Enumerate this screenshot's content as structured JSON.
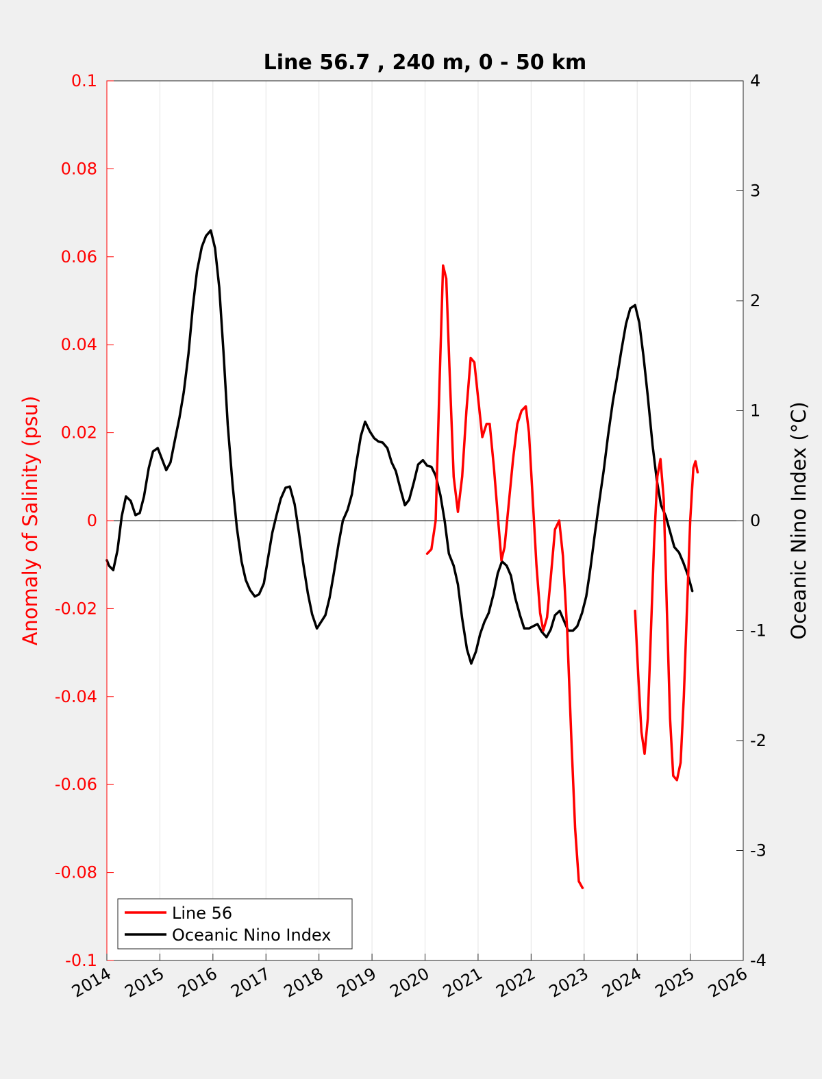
{
  "chart_data": {
    "type": "line",
    "title": "Line 56.7 , 240 m, 0 - 50 km",
    "xlabel": "",
    "xlim": [
      2014,
      2026
    ],
    "xticks": [
      "2014",
      "2015",
      "2016",
      "2017",
      "2018",
      "2019",
      "2020",
      "2021",
      "2022",
      "2023",
      "2024",
      "2025",
      "2026"
    ],
    "y_left": {
      "label": "Anomaly of Salinity (psu)",
      "lim": [
        -0.1,
        0.1
      ],
      "ticks": [
        "-0.1",
        "-0.08",
        "-0.06",
        "-0.04",
        "-0.02",
        "0",
        "0.02",
        "0.04",
        "0.06",
        "0.08",
        "0.1"
      ],
      "color": "#ff0000"
    },
    "y_right": {
      "label": "Oceanic Nino Index (°C)",
      "lim": [
        -4,
        4
      ],
      "ticks": [
        "-4",
        "-3",
        "-2",
        "-1",
        "0",
        "1",
        "2",
        "3",
        "4"
      ],
      "color": "#000000"
    },
    "grid": "vertical",
    "zero_line": true,
    "legend": {
      "placement": "bottom-left"
    },
    "series": [
      {
        "name": "Line 56",
        "axis": "left",
        "color": "#ff0000",
        "segments": [
          [
            [
              2020.04,
              -0.0075
            ],
            [
              2020.12,
              -0.0065
            ],
            [
              2020.2,
              0.0
            ],
            [
              2020.27,
              0.03
            ],
            [
              2020.34,
              0.058
            ],
            [
              2020.4,
              0.055
            ],
            [
              2020.46,
              0.035
            ],
            [
              2020.54,
              0.01
            ],
            [
              2020.62,
              0.002
            ],
            [
              2020.7,
              0.01
            ],
            [
              2020.78,
              0.025
            ],
            [
              2020.86,
              0.037
            ],
            [
              2020.93,
              0.036
            ],
            [
              2021.0,
              0.028
            ],
            [
              2021.08,
              0.019
            ],
            [
              2021.16,
              0.022
            ],
            [
              2021.22,
              0.022
            ],
            [
              2021.3,
              0.012
            ],
            [
              2021.38,
              0.0
            ],
            [
              2021.44,
              -0.009
            ],
            [
              2021.5,
              -0.006
            ],
            [
              2021.58,
              0.004
            ],
            [
              2021.66,
              0.014
            ],
            [
              2021.74,
              0.022
            ],
            [
              2021.82,
              0.025
            ],
            [
              2021.9,
              0.026
            ],
            [
              2021.96,
              0.02
            ],
            [
              2022.03,
              0.005
            ],
            [
              2022.1,
              -0.01
            ],
            [
              2022.17,
              -0.021
            ],
            [
              2022.23,
              -0.025
            ],
            [
              2022.3,
              -0.022
            ],
            [
              2022.37,
              -0.013
            ],
            [
              2022.45,
              -0.002
            ],
            [
              2022.53,
              0.0
            ],
            [
              2022.6,
              -0.008
            ],
            [
              2022.68,
              -0.025
            ],
            [
              2022.76,
              -0.05
            ],
            [
              2022.83,
              -0.07
            ],
            [
              2022.9,
              -0.082
            ],
            [
              2022.97,
              -0.0835
            ]
          ],
          [
            [
              2023.96,
              -0.0205
            ],
            [
              2024.02,
              -0.035
            ],
            [
              2024.08,
              -0.048
            ],
            [
              2024.14,
              -0.053
            ],
            [
              2024.2,
              -0.045
            ],
            [
              2024.26,
              -0.025
            ],
            [
              2024.32,
              -0.005
            ],
            [
              2024.38,
              0.01
            ],
            [
              2024.44,
              0.014
            ],
            [
              2024.5,
              0.005
            ],
            [
              2024.56,
              -0.02
            ],
            [
              2024.62,
              -0.045
            ],
            [
              2024.68,
              -0.058
            ],
            [
              2024.75,
              -0.059
            ],
            [
              2024.82,
              -0.055
            ],
            [
              2024.88,
              -0.04
            ],
            [
              2024.94,
              -0.02
            ],
            [
              2025.0,
              0.0
            ],
            [
              2025.06,
              0.012
            ],
            [
              2025.1,
              0.0135
            ],
            [
              2025.14,
              0.011
            ]
          ]
        ]
      },
      {
        "name": "Oceanic Nino Index",
        "axis": "right",
        "color": "#000000",
        "segments": [
          [
            [
              2014.0,
              -0.36
            ],
            [
              2014.04,
              -0.41
            ],
            [
              2014.12,
              -0.45
            ],
            [
              2014.2,
              -0.27
            ],
            [
              2014.28,
              0.04
            ],
            [
              2014.36,
              0.22
            ],
            [
              2014.45,
              0.18
            ],
            [
              2014.54,
              0.05
            ],
            [
              2014.62,
              0.07
            ],
            [
              2014.7,
              0.22
            ],
            [
              2014.79,
              0.48
            ],
            [
              2014.87,
              0.63
            ],
            [
              2014.96,
              0.66
            ],
            [
              2015.04,
              0.56
            ],
            [
              2015.12,
              0.46
            ],
            [
              2015.2,
              0.53
            ],
            [
              2015.29,
              0.75
            ],
            [
              2015.37,
              0.94
            ],
            [
              2015.45,
              1.17
            ],
            [
              2015.54,
              1.52
            ],
            [
              2015.62,
              1.94
            ],
            [
              2015.7,
              2.27
            ],
            [
              2015.79,
              2.49
            ],
            [
              2015.87,
              2.59
            ],
            [
              2015.96,
              2.64
            ],
            [
              2016.04,
              2.48
            ],
            [
              2016.12,
              2.12
            ],
            [
              2016.2,
              1.53
            ],
            [
              2016.28,
              0.87
            ],
            [
              2016.37,
              0.33
            ],
            [
              2016.45,
              -0.06
            ],
            [
              2016.54,
              -0.37
            ],
            [
              2016.62,
              -0.54
            ],
            [
              2016.7,
              -0.63
            ],
            [
              2016.79,
              -0.69
            ],
            [
              2016.87,
              -0.67
            ],
            [
              2016.96,
              -0.57
            ],
            [
              2017.04,
              -0.34
            ],
            [
              2017.12,
              -0.11
            ],
            [
              2017.2,
              0.05
            ],
            [
              2017.28,
              0.2
            ],
            [
              2017.37,
              0.3
            ],
            [
              2017.45,
              0.31
            ],
            [
              2017.54,
              0.15
            ],
            [
              2017.62,
              -0.1
            ],
            [
              2017.7,
              -0.38
            ],
            [
              2017.79,
              -0.66
            ],
            [
              2017.87,
              -0.85
            ],
            [
              2017.96,
              -0.98
            ],
            [
              2018.04,
              -0.92
            ],
            [
              2018.12,
              -0.86
            ],
            [
              2018.2,
              -0.7
            ],
            [
              2018.28,
              -0.48
            ],
            [
              2018.37,
              -0.21
            ],
            [
              2018.45,
              0.0
            ],
            [
              2018.54,
              0.1
            ],
            [
              2018.62,
              0.24
            ],
            [
              2018.7,
              0.51
            ],
            [
              2018.79,
              0.77
            ],
            [
              2018.87,
              0.9
            ],
            [
              2018.96,
              0.81
            ],
            [
              2019.04,
              0.75
            ],
            [
              2019.12,
              0.72
            ],
            [
              2019.2,
              0.71
            ],
            [
              2019.29,
              0.66
            ],
            [
              2019.37,
              0.53
            ],
            [
              2019.45,
              0.45
            ],
            [
              2019.54,
              0.28
            ],
            [
              2019.62,
              0.14
            ],
            [
              2019.7,
              0.19
            ],
            [
              2019.79,
              0.35
            ],
            [
              2019.87,
              0.51
            ],
            [
              2019.96,
              0.55
            ],
            [
              2020.04,
              0.5
            ],
            [
              2020.12,
              0.49
            ],
            [
              2020.2,
              0.41
            ],
            [
              2020.29,
              0.23
            ],
            [
              2020.37,
              0.0
            ],
            [
              2020.45,
              -0.3
            ],
            [
              2020.54,
              -0.41
            ],
            [
              2020.62,
              -0.58
            ],
            [
              2020.7,
              -0.89
            ],
            [
              2020.79,
              -1.17
            ],
            [
              2020.87,
              -1.3
            ],
            [
              2020.96,
              -1.19
            ],
            [
              2021.04,
              -1.03
            ],
            [
              2021.12,
              -0.92
            ],
            [
              2021.2,
              -0.84
            ],
            [
              2021.29,
              -0.67
            ],
            [
              2021.37,
              -0.48
            ],
            [
              2021.45,
              -0.37
            ],
            [
              2021.54,
              -0.41
            ],
            [
              2021.62,
              -0.5
            ],
            [
              2021.7,
              -0.7
            ],
            [
              2021.79,
              -0.86
            ],
            [
              2021.87,
              -0.98
            ],
            [
              2021.96,
              -0.98
            ],
            [
              2022.04,
              -0.96
            ],
            [
              2022.12,
              -0.94
            ],
            [
              2022.2,
              -1.01
            ],
            [
              2022.29,
              -1.06
            ],
            [
              2022.37,
              -0.99
            ],
            [
              2022.45,
              -0.86
            ],
            [
              2022.54,
              -0.82
            ],
            [
              2022.62,
              -0.91
            ],
            [
              2022.7,
              -1.0
            ],
            [
              2022.79,
              -1.0
            ],
            [
              2022.87,
              -0.96
            ],
            [
              2022.96,
              -0.84
            ],
            [
              2023.04,
              -0.69
            ],
            [
              2023.12,
              -0.43
            ],
            [
              2023.2,
              -0.13
            ],
            [
              2023.29,
              0.19
            ],
            [
              2023.37,
              0.46
            ],
            [
              2023.45,
              0.77
            ],
            [
              2023.54,
              1.08
            ],
            [
              2023.62,
              1.3
            ],
            [
              2023.7,
              1.54
            ],
            [
              2023.79,
              1.79
            ],
            [
              2023.87,
              1.93
            ],
            [
              2023.96,
              1.96
            ],
            [
              2024.04,
              1.8
            ],
            [
              2024.12,
              1.49
            ],
            [
              2024.2,
              1.13
            ],
            [
              2024.29,
              0.69
            ],
            [
              2024.37,
              0.37
            ],
            [
              2024.45,
              0.14
            ],
            [
              2024.54,
              0.04
            ],
            [
              2024.62,
              -0.1
            ],
            [
              2024.7,
              -0.24
            ],
            [
              2024.79,
              -0.29
            ],
            [
              2024.87,
              -0.38
            ],
            [
              2024.96,
              -0.5
            ],
            [
              2025.04,
              -0.64
            ]
          ]
        ]
      }
    ]
  }
}
